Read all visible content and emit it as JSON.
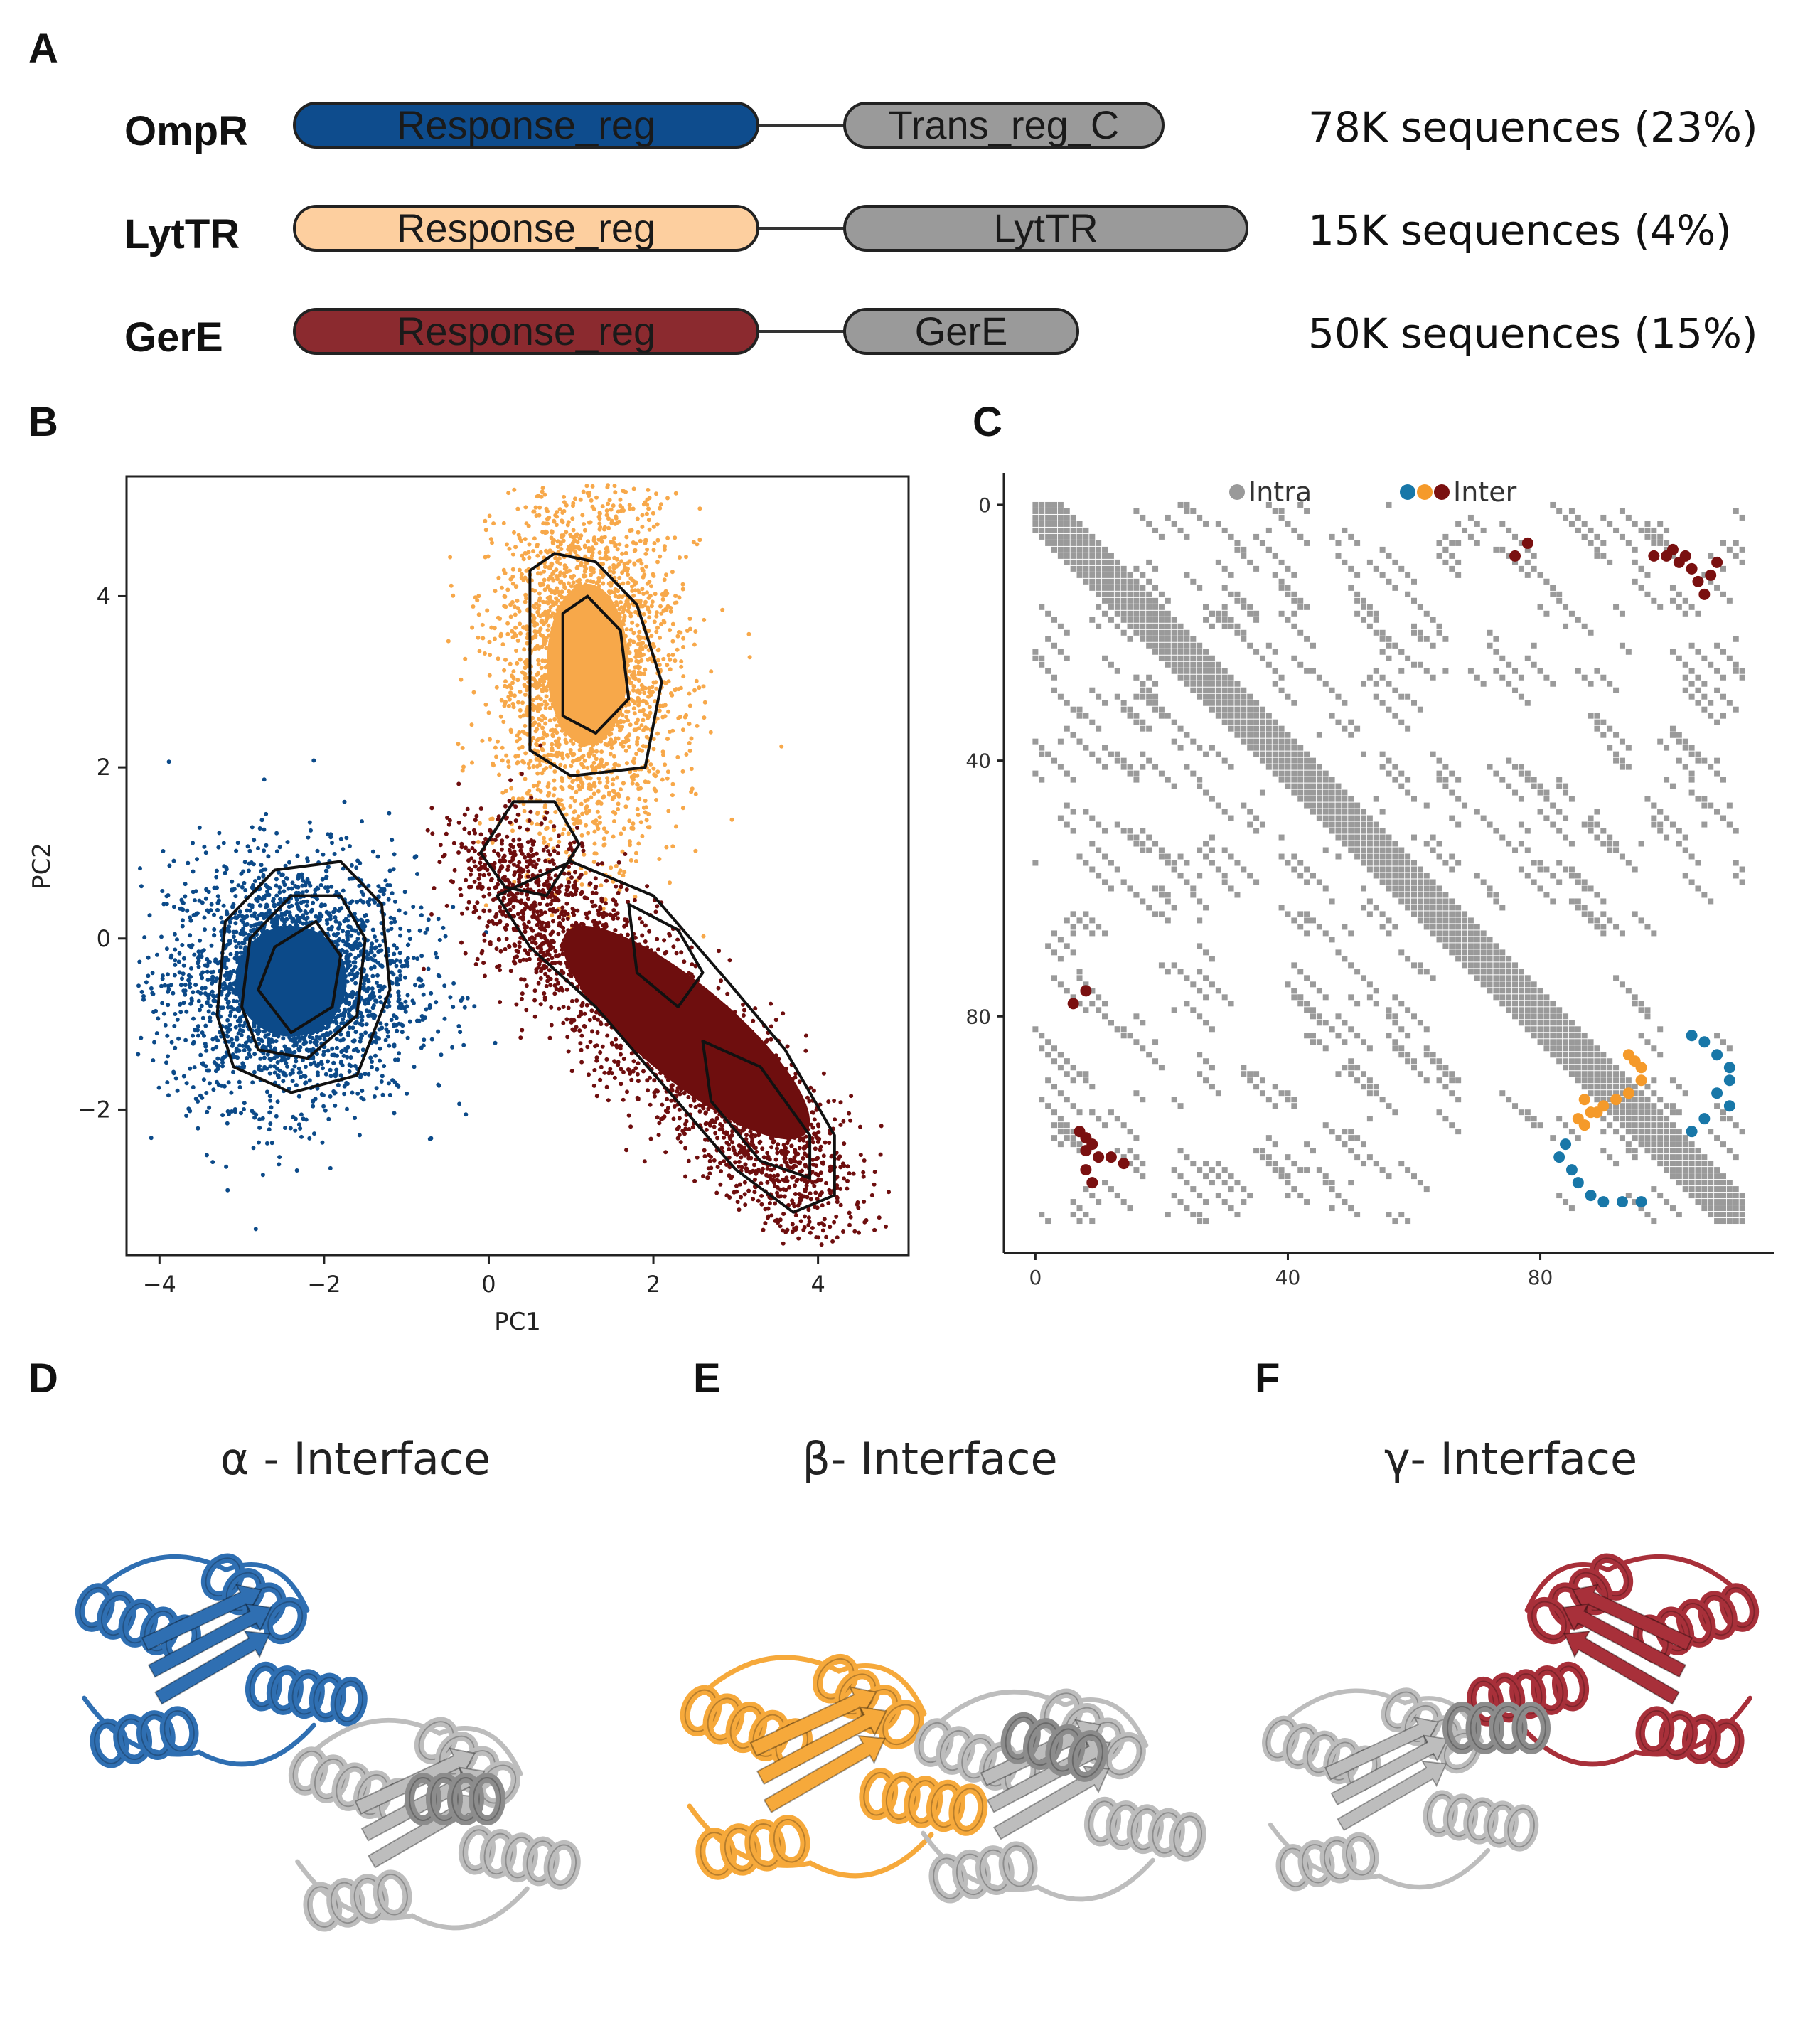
{
  "panels": {
    "a": "A",
    "b": "B",
    "c": "C",
    "d": "D",
    "e": "E",
    "f": "F"
  },
  "architectures": [
    {
      "name": "OmpR",
      "domain1": "Response_reg",
      "domain2": "Trans_reg_C",
      "count": "78K sequences (23%)",
      "color": "#0e4c8d"
    },
    {
      "name": "LytTR",
      "domain1": "Response_reg",
      "domain2": "LytTR",
      "count": "15K sequences (4%)",
      "color": "#fdcf9f"
    },
    {
      "name": "GerE",
      "domain1": "Response_reg",
      "domain2": "GerE",
      "count": "50K sequences (15%)",
      "color": "#8b2a2f"
    }
  ],
  "chart_data": [
    {
      "type": "scatter",
      "title": "",
      "xlabel": "PC1",
      "ylabel": "PC2",
      "xlim": [
        -4.4,
        5.1
      ],
      "ylim": [
        -3.7,
        5.4
      ],
      "xticks": [
        "−4",
        "−2",
        "0",
        "2",
        "4"
      ],
      "xtick_values": [
        -4,
        -2,
        0,
        2,
        4
      ],
      "yticks": [
        "−2",
        "0",
        "2",
        "4"
      ],
      "ytick_values": [
        -2,
        0,
        2,
        4
      ],
      "series": [
        {
          "name": "OmpR",
          "color": "#0c4a89",
          "center": [
            -2.4,
            -0.5
          ],
          "spread": [
            0.75,
            0.72
          ]
        },
        {
          "name": "LytTR",
          "color": "#f7a84a",
          "center": [
            1.2,
            3.2
          ],
          "spread": [
            0.55,
            1.05
          ]
        },
        {
          "name": "GerE",
          "color": "#6e0e0e",
          "center": [
            2.3,
            -0.8
          ],
          "spread": [
            2.0,
            0.45
          ]
        }
      ]
    },
    {
      "type": "scatter",
      "title": "",
      "xlabel": "",
      "ylabel": "",
      "xlim": [
        -5,
        117
      ],
      "ylim": [
        -5,
        117
      ],
      "xticks": [
        "0",
        "40",
        "80"
      ],
      "xtick_values": [
        0,
        40,
        80
      ],
      "yticks": [
        "0",
        "40",
        "80"
      ],
      "ytick_values": [
        0,
        40,
        80
      ],
      "legend": {
        "intra": "Intra",
        "inter": "Inter"
      },
      "colors": {
        "intra": "#9a9a9a",
        "ompr": "#1877a8",
        "lyttr": "#f59a2a",
        "gere": "#7a1010"
      },
      "intra_diagonal": [
        0,
        112
      ],
      "inter_gere": [
        [
          76,
          8
        ],
        [
          78,
          6
        ],
        [
          98,
          8
        ],
        [
          100,
          8
        ],
        [
          101,
          7
        ],
        [
          102,
          9
        ],
        [
          103,
          8
        ],
        [
          104,
          10
        ],
        [
          105,
          12
        ],
        [
          106,
          14
        ],
        [
          107,
          11
        ],
        [
          108,
          9
        ],
        [
          8,
          76
        ],
        [
          6,
          78
        ],
        [
          7,
          98
        ],
        [
          8,
          99
        ],
        [
          9,
          100
        ],
        [
          8,
          101
        ],
        [
          10,
          102
        ],
        [
          12,
          102
        ],
        [
          14,
          103
        ],
        [
          8,
          104
        ],
        [
          9,
          106
        ]
      ],
      "inter_lyttr": [
        [
          94,
          86
        ],
        [
          95,
          87
        ],
        [
          96,
          88
        ],
        [
          96,
          90
        ],
        [
          94,
          92
        ],
        [
          87,
          93
        ],
        [
          88,
          95
        ],
        [
          89,
          95
        ],
        [
          90,
          94
        ],
        [
          92,
          93
        ],
        [
          86,
          96
        ],
        [
          87,
          97
        ]
      ],
      "inter_ompr": [
        [
          104,
          83
        ],
        [
          106,
          84
        ],
        [
          108,
          86
        ],
        [
          110,
          88
        ],
        [
          110,
          90
        ],
        [
          108,
          92
        ],
        [
          110,
          94
        ],
        [
          106,
          96
        ],
        [
          104,
          98
        ],
        [
          85,
          104
        ],
        [
          86,
          106
        ],
        [
          88,
          108
        ],
        [
          90,
          109
        ],
        [
          93,
          109
        ],
        [
          96,
          109
        ],
        [
          83,
          102
        ],
        [
          84,
          100
        ]
      ]
    }
  ],
  "interfaces": [
    {
      "title": "α - Interface",
      "color": "#2f6fb2"
    },
    {
      "title": "β- Interface",
      "color": "#f6a93b"
    },
    {
      "title": "γ- Interface",
      "color": "#a8303a"
    }
  ]
}
